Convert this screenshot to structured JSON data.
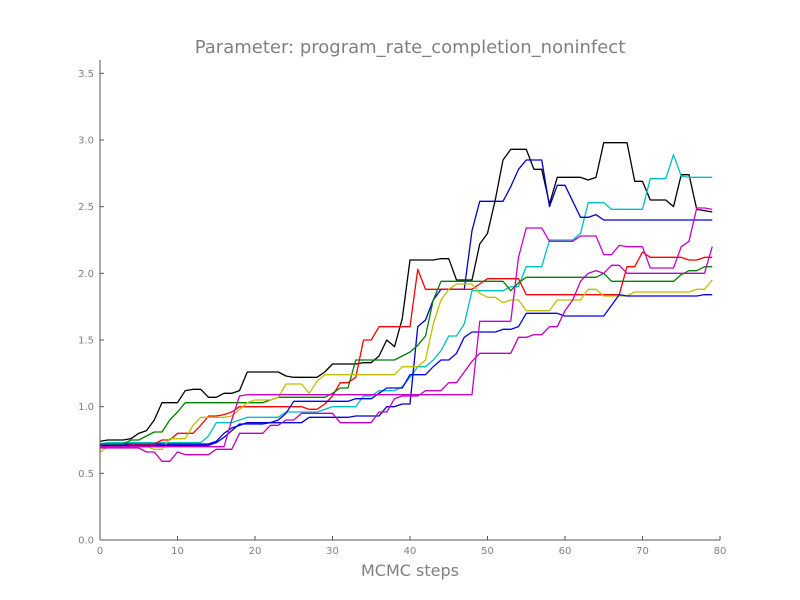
{
  "chart_data": {
    "type": "line",
    "title": "Parameter: program_rate_completion_noninfect",
    "xlabel": "MCMC steps",
    "ylabel": "",
    "xlim": [
      0,
      80
    ],
    "ylim": [
      0,
      3.6
    ],
    "x_ticks": [
      0,
      10,
      20,
      30,
      40,
      50,
      60,
      70,
      80
    ],
    "y_ticks": [
      0.0,
      0.5,
      1.0,
      1.5,
      2.0,
      2.5,
      3.0,
      3.5
    ],
    "x_tick_labels": [
      "0",
      "10",
      "20",
      "30",
      "40",
      "50",
      "60",
      "70",
      "80"
    ],
    "y_tick_labels": [
      "0.0",
      "0.5",
      "1.0",
      "1.5",
      "2.0",
      "2.5",
      "3.0",
      "3.5"
    ],
    "grid": false,
    "legend": "none",
    "x": [
      0,
      1,
      2,
      3,
      4,
      5,
      6,
      7,
      8,
      9,
      10,
      11,
      12,
      13,
      14,
      15,
      16,
      17,
      18,
      19,
      20,
      21,
      22,
      23,
      24,
      25,
      26,
      27,
      28,
      29,
      30,
      31,
      32,
      33,
      34,
      35,
      36,
      37,
      38,
      39,
      40,
      41,
      42,
      43,
      44,
      45,
      46,
      47,
      48,
      49,
      50,
      51,
      52,
      53,
      54,
      55,
      56,
      57,
      58,
      59,
      60,
      61,
      62,
      63,
      64,
      65,
      66,
      67,
      68,
      69,
      70,
      71,
      72,
      73,
      74,
      75,
      76,
      77,
      78,
      79
    ],
    "series": [
      {
        "color": "#000000",
        "values": [
          0.74,
          0.75,
          0.75,
          0.75,
          0.76,
          0.8,
          0.82,
          0.9,
          1.03,
          1.03,
          1.03,
          1.12,
          1.13,
          1.13,
          1.07,
          1.07,
          1.1,
          1.1,
          1.12,
          1.26,
          1.26,
          1.26,
          1.26,
          1.26,
          1.23,
          1.22,
          1.22,
          1.22,
          1.22,
          1.26,
          1.32,
          1.32,
          1.32,
          1.32,
          1.33,
          1.33,
          1.38,
          1.5,
          1.45,
          1.66,
          2.1,
          2.1,
          2.1,
          2.1,
          2.11,
          2.11,
          1.95,
          1.95,
          1.95,
          2.22,
          2.3,
          2.55,
          2.85,
          2.93,
          2.93,
          2.93,
          2.78,
          2.78,
          2.52,
          2.72,
          2.72,
          2.72,
          2.72,
          2.7,
          2.72,
          2.98,
          2.98,
          2.98,
          2.98,
          2.69,
          2.69,
          2.55,
          2.55,
          2.55,
          2.5,
          2.74,
          2.74,
          2.48,
          2.47,
          2.46
        ]
      },
      {
        "color": "#00bfbf",
        "values": [
          0.72,
          0.73,
          0.73,
          0.73,
          0.73,
          0.73,
          0.73,
          0.73,
          0.73,
          0.73,
          0.73,
          0.73,
          0.73,
          0.73,
          0.78,
          0.88,
          0.88,
          0.88,
          0.9,
          0.92,
          0.92,
          0.92,
          0.92,
          0.92,
          0.96,
          0.96,
          0.96,
          0.96,
          0.96,
          0.98,
          1.0,
          1.0,
          1.0,
          1.0,
          1.08,
          1.08,
          1.12,
          1.12,
          1.12,
          1.15,
          1.22,
          1.3,
          1.3,
          1.35,
          1.42,
          1.53,
          1.53,
          1.62,
          1.87,
          1.87,
          1.87,
          1.87,
          1.87,
          1.9,
          1.9,
          2.05,
          2.05,
          2.05,
          2.25,
          2.25,
          2.25,
          2.25,
          2.3,
          2.53,
          2.53,
          2.53,
          2.48,
          2.48,
          2.48,
          2.48,
          2.48,
          2.71,
          2.71,
          2.71,
          2.89,
          2.73,
          2.72,
          2.72,
          2.72,
          2.72
        ]
      },
      {
        "color": "#0000cc",
        "values": [
          0.72,
          0.72,
          0.72,
          0.72,
          0.72,
          0.72,
          0.72,
          0.72,
          0.72,
          0.72,
          0.72,
          0.72,
          0.72,
          0.72,
          0.72,
          0.74,
          0.8,
          0.84,
          0.86,
          0.88,
          0.88,
          0.88,
          0.88,
          0.88,
          0.88,
          0.88,
          0.88,
          0.92,
          0.92,
          0.92,
          0.92,
          0.92,
          0.92,
          0.93,
          0.93,
          0.93,
          0.93,
          1.0,
          1.0,
          1.02,
          1.02,
          1.6,
          1.65,
          1.8,
          1.88,
          1.88,
          1.88,
          1.88,
          2.32,
          2.54,
          2.54,
          2.54,
          2.54,
          2.65,
          2.78,
          2.85,
          2.85,
          2.85,
          2.5,
          2.66,
          2.66,
          2.54,
          2.42,
          2.42,
          2.44,
          2.4,
          2.4,
          2.4,
          2.4,
          2.4,
          2.4,
          2.4,
          2.4,
          2.4,
          2.4,
          2.4,
          2.4,
          2.4,
          2.4,
          2.4
        ]
      },
      {
        "color": "#ff0000",
        "values": [
          0.7,
          0.7,
          0.7,
          0.7,
          0.72,
          0.72,
          0.72,
          0.72,
          0.75,
          0.75,
          0.8,
          0.8,
          0.8,
          0.86,
          0.93,
          0.93,
          0.94,
          0.96,
          1.0,
          1.0,
          1.0,
          1.0,
          1.0,
          1.0,
          1.0,
          1.0,
          1.0,
          0.98,
          0.98,
          1.02,
          1.08,
          1.18,
          1.18,
          1.22,
          1.5,
          1.5,
          1.6,
          1.6,
          1.6,
          1.6,
          1.6,
          2.03,
          1.88,
          1.88,
          1.88,
          1.88,
          1.88,
          1.88,
          1.88,
          1.92,
          1.96,
          1.96,
          1.96,
          1.96,
          1.96,
          1.84,
          1.84,
          1.84,
          1.84,
          1.84,
          1.84,
          1.84,
          1.84,
          1.84,
          1.84,
          1.84,
          1.84,
          1.84,
          2.05,
          2.05,
          2.16,
          2.12,
          2.12,
          2.12,
          2.12,
          2.12,
          2.1,
          2.1,
          2.12,
          2.12
        ]
      },
      {
        "color": "#008000",
        "values": [
          0.72,
          0.72,
          0.72,
          0.72,
          0.75,
          0.75,
          0.78,
          0.81,
          0.81,
          0.9,
          0.96,
          1.03,
          1.03,
          1.03,
          1.03,
          1.03,
          1.03,
          1.03,
          1.03,
          1.03,
          1.03,
          1.03,
          1.05,
          1.07,
          1.07,
          1.07,
          1.07,
          1.07,
          1.07,
          1.07,
          1.1,
          1.14,
          1.14,
          1.35,
          1.35,
          1.35,
          1.35,
          1.35,
          1.35,
          1.38,
          1.41,
          1.46,
          1.53,
          1.8,
          1.94,
          1.94,
          1.94,
          1.94,
          1.94,
          1.94,
          1.94,
          1.94,
          1.94,
          1.87,
          1.93,
          1.97,
          1.97,
          1.97,
          1.97,
          1.97,
          1.97,
          1.97,
          1.97,
          1.97,
          1.97,
          2.0,
          1.94,
          1.94,
          1.94,
          1.94,
          1.94,
          1.94,
          1.94,
          1.94,
          1.94,
          1.99,
          2.02,
          2.02,
          2.05,
          2.05
        ]
      },
      {
        "color": "#bfbf00",
        "values": [
          0.66,
          0.7,
          0.7,
          0.7,
          0.7,
          0.7,
          0.7,
          0.68,
          0.68,
          0.76,
          0.76,
          0.76,
          0.86,
          0.92,
          0.92,
          0.92,
          0.92,
          0.93,
          0.98,
          1.03,
          1.05,
          1.05,
          1.05,
          1.07,
          1.17,
          1.17,
          1.17,
          1.1,
          1.19,
          1.24,
          1.24,
          1.24,
          1.24,
          1.24,
          1.24,
          1.24,
          1.24,
          1.24,
          1.24,
          1.3,
          1.3,
          1.3,
          1.35,
          1.62,
          1.8,
          1.88,
          1.92,
          1.92,
          1.92,
          1.85,
          1.82,
          1.82,
          1.78,
          1.8,
          1.8,
          1.72,
          1.72,
          1.72,
          1.72,
          1.8,
          1.8,
          1.8,
          1.8,
          1.88,
          1.88,
          1.83,
          1.83,
          1.83,
          1.83,
          1.86,
          1.86,
          1.86,
          1.86,
          1.86,
          1.86,
          1.86,
          1.86,
          1.88,
          1.88,
          1.95
        ]
      },
      {
        "color": "#0000ff",
        "values": [
          0.71,
          0.71,
          0.71,
          0.71,
          0.71,
          0.71,
          0.71,
          0.71,
          0.71,
          0.71,
          0.71,
          0.71,
          0.71,
          0.71,
          0.71,
          0.73,
          0.77,
          0.82,
          0.87,
          0.87,
          0.87,
          0.87,
          0.88,
          0.9,
          0.95,
          1.04,
          1.04,
          1.04,
          1.04,
          1.04,
          1.04,
          1.04,
          1.04,
          1.06,
          1.06,
          1.06,
          1.1,
          1.14,
          1.14,
          1.14,
          1.24,
          1.24,
          1.24,
          1.3,
          1.35,
          1.35,
          1.4,
          1.52,
          1.56,
          1.56,
          1.56,
          1.56,
          1.58,
          1.58,
          1.6,
          1.7,
          1.7,
          1.7,
          1.7,
          1.7,
          1.68,
          1.68,
          1.68,
          1.68,
          1.68,
          1.68,
          1.76,
          1.84,
          1.83,
          1.83,
          1.83,
          1.83,
          1.83,
          1.83,
          1.83,
          1.83,
          1.83,
          1.83,
          1.84,
          1.84
        ]
      },
      {
        "color": "#bf00bf",
        "values": [
          0.69,
          0.69,
          0.69,
          0.69,
          0.69,
          0.69,
          0.66,
          0.66,
          0.59,
          0.59,
          0.66,
          0.64,
          0.64,
          0.64,
          0.64,
          0.68,
          0.68,
          0.68,
          0.8,
          0.8,
          0.8,
          0.8,
          0.86,
          0.86,
          0.9,
          0.9,
          0.95,
          0.95,
          0.95,
          0.95,
          0.95,
          0.88,
          0.88,
          0.88,
          0.88,
          0.88,
          0.96,
          0.96,
          1.06,
          1.08,
          1.08,
          1.08,
          1.12,
          1.12,
          1.12,
          1.18,
          1.18,
          1.26,
          1.34,
          1.4,
          1.4,
          1.4,
          1.4,
          1.4,
          1.52,
          1.52,
          1.54,
          1.54,
          1.6,
          1.6,
          1.72,
          1.8,
          1.94,
          2.0,
          2.02,
          2.0,
          2.06,
          2.06,
          2.0,
          2.0,
          2.0,
          2.0,
          2.0,
          2.0,
          2.0,
          2.0,
          2.0,
          2.0,
          2.0,
          2.2
        ]
      },
      {
        "color": "#cc00cc",
        "values": [
          0.7,
          0.7,
          0.7,
          0.7,
          0.7,
          0.7,
          0.7,
          0.7,
          0.7,
          0.7,
          0.7,
          0.7,
          0.7,
          0.7,
          0.7,
          0.7,
          0.7,
          0.9,
          1.08,
          1.09,
          1.09,
          1.09,
          1.09,
          1.09,
          1.09,
          1.09,
          1.09,
          1.09,
          1.09,
          1.09,
          1.09,
          1.09,
          1.09,
          1.09,
          1.09,
          1.09,
          1.09,
          1.09,
          1.09,
          1.09,
          1.09,
          1.09,
          1.09,
          1.09,
          1.09,
          1.09,
          1.09,
          1.09,
          1.09,
          1.64,
          1.64,
          1.64,
          1.64,
          1.64,
          2.12,
          2.34,
          2.34,
          2.34,
          2.24,
          2.24,
          2.24,
          2.24,
          2.28,
          2.28,
          2.28,
          2.14,
          2.14,
          2.21,
          2.2,
          2.2,
          2.2,
          2.04,
          2.04,
          2.04,
          2.04,
          2.2,
          2.24,
          2.49,
          2.49,
          2.48
        ]
      }
    ]
  }
}
